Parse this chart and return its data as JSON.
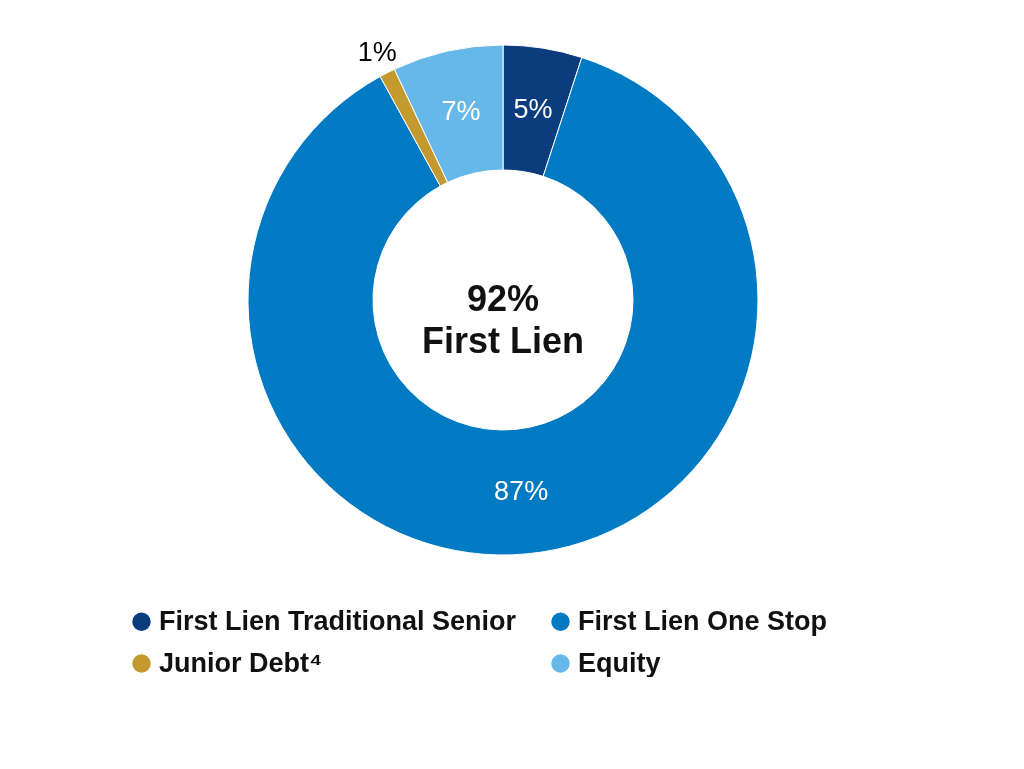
{
  "chart_data": {
    "type": "donut",
    "categories": [
      "First Lien Traditional Senior",
      "First Lien One Stop",
      "Junior Debt⁴",
      "Equity"
    ],
    "values": [
      5,
      87,
      1,
      7
    ],
    "colors": [
      "#0b3c7d",
      "#007ac2",
      "#c49a2f",
      "#66b8e8"
    ],
    "value_labels": [
      "5%",
      "87%",
      "1%",
      "7%"
    ],
    "annotations": [
      "92%\nFirst Lien"
    ],
    "legend": "bottom"
  }
}
